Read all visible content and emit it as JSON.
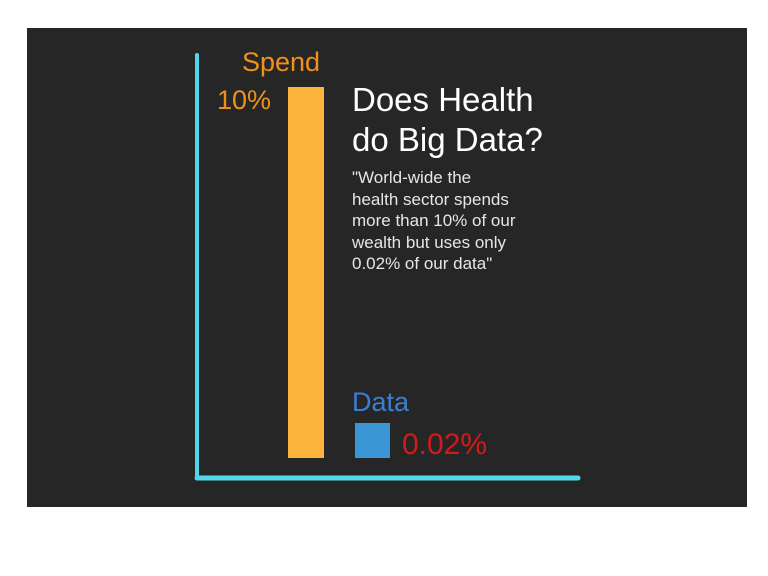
{
  "chart_data": {
    "type": "bar",
    "categories": [
      "Spend",
      "Data"
    ],
    "values": [
      10,
      0.02
    ],
    "value_labels": [
      "10%",
      "0.02%"
    ],
    "title": "Does Health do Big Data?",
    "subtitle": "\"World-wide the health sector spends more than 10% of our wealth but uses only 0.02% of our data\"",
    "xlabel": "",
    "ylabel": "",
    "ylim": [
      0,
      10
    ],
    "grid": false,
    "colors": {
      "background": "#262626",
      "axis": "#4fd8ea",
      "spend_bar": "#fdb43c",
      "spend_label": "#f0901c",
      "data_bar": "#3a96d4",
      "data_label": "#3a7fd5",
      "data_value": "#d11a1a",
      "title": "#ffffff"
    }
  },
  "title_lines": [
    "Does Health",
    "do Big Data?"
  ],
  "quote_lines": [
    "\"World-wide the",
    "health sector spends",
    "more than 10% of our",
    "wealth but uses only",
    "0.02% of our data\""
  ]
}
